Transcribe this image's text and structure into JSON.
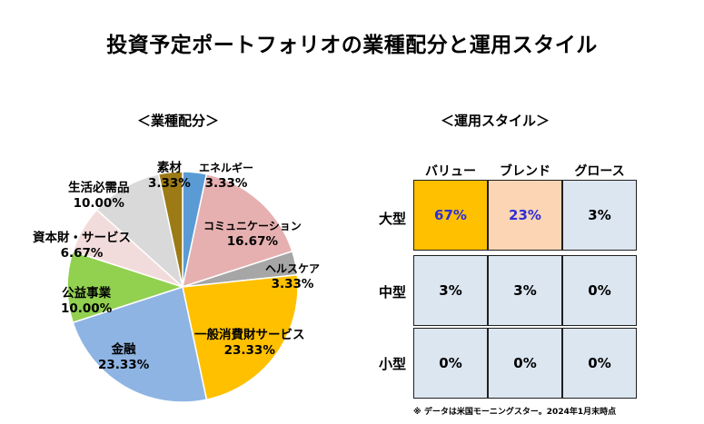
{
  "title": "投資予定ポートフォリオの業種配分と運用スタイル",
  "left_subtitle": "＜業種配分＞",
  "right_subtitle": "＜運用スタイル＞",
  "note": "※ データは米国モーニングスター。2024年1月末時点",
  "chart_data": [
    {
      "type": "pie",
      "title": "＜業種配分＞",
      "slices": [
        {
          "label": "エネルギー",
          "value": 3.33,
          "value_label": "3.33%",
          "color": "#5b9bd5"
        },
        {
          "label": "コミュニケーション",
          "value": 16.67,
          "value_label": "16.67%",
          "color": "#e6b0b0"
        },
        {
          "label": "ヘルスケア",
          "value": 3.33,
          "value_label": "3.33%",
          "color": "#a6a6a6"
        },
        {
          "label": "一般消費財サービス",
          "value": 23.33,
          "value_label": "23.33%",
          "color": "#ffc000"
        },
        {
          "label": "金融",
          "value": 23.33,
          "value_label": "23.33%",
          "color": "#8eb4e3"
        },
        {
          "label": "公益事業",
          "value": 10.0,
          "value_label": "10.00%",
          "color": "#92d050"
        },
        {
          "label": "資本財・サービス",
          "value": 6.67,
          "value_label": "6.67%",
          "color": "#f2dcdb"
        },
        {
          "label": "生活必需品",
          "value": 10.0,
          "value_label": "10.00%",
          "color": "#d9d9d9"
        },
        {
          "label": "素材",
          "value": 3.33,
          "value_label": "3.33%",
          "color": "#9c7a15"
        }
      ]
    },
    {
      "type": "heatmap",
      "title": "＜運用スタイル＞",
      "columns": [
        "バリュー",
        "ブレンド",
        "グロース"
      ],
      "rows": [
        "大型",
        "中型",
        "小型"
      ],
      "values": [
        [
          "67%",
          "23%",
          "3%"
        ],
        [
          "3%",
          "3%",
          "0%"
        ],
        [
          "0%",
          "0%",
          "0%"
        ]
      ],
      "colors": {
        "default": "#dce6f1",
        "highlight_high": "#ffc000",
        "highlight_mid": "#fcd5b4",
        "emphasis_text": "#2e2ed6"
      }
    }
  ]
}
